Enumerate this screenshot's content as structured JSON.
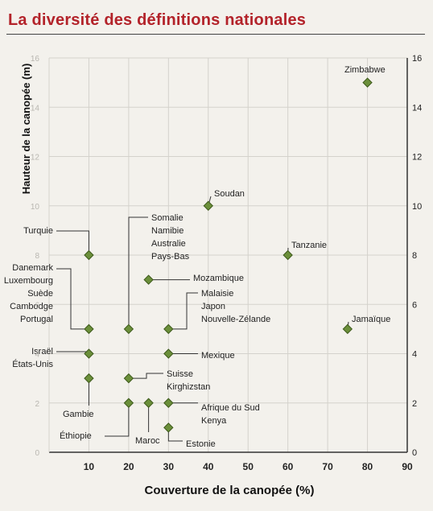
{
  "chart_data": {
    "type": "scatter",
    "title": "La diversité des définitions nationales",
    "xlabel": "Couverture de la canopée (%)",
    "ylabel": "Hauteur de la canopée (m)",
    "xlim": [
      0,
      90
    ],
    "ylim": [
      0,
      16
    ],
    "x_ticks": [
      10,
      20,
      30,
      40,
      50,
      60,
      70,
      80,
      90
    ],
    "y_ticks_left": [
      0,
      2,
      4,
      6,
      8,
      10,
      12,
      14,
      16
    ],
    "y_ticks_right": [
      0,
      2,
      4,
      6,
      8,
      10,
      12,
      14,
      16
    ],
    "grid": true,
    "marker_color": "#6b8f3a",
    "points": [
      {
        "x": 10,
        "y": 8,
        "labels": [
          "Turquie"
        ]
      },
      {
        "x": 10,
        "y": 5,
        "labels": [
          "Danemark",
          "Luxembourg",
          "Suède",
          "Cambodge",
          "Portugal"
        ]
      },
      {
        "x": 10,
        "y": 4,
        "labels": [
          "Israël",
          "États-Unis"
        ]
      },
      {
        "x": 10,
        "y": 3,
        "labels": [
          "Gambie"
        ]
      },
      {
        "x": 20,
        "y": 5,
        "labels": [
          "Somalie",
          "Namibie",
          "Australie",
          "Pays-Bas"
        ]
      },
      {
        "x": 20,
        "y": 3,
        "labels": [
          "Suisse",
          "Kirghizstan"
        ]
      },
      {
        "x": 20,
        "y": 2,
        "labels": [
          "Éthiopie"
        ]
      },
      {
        "x": 25,
        "y": 7,
        "labels": [
          "Mozambique"
        ]
      },
      {
        "x": 25,
        "y": 2,
        "labels": [
          "Maroc"
        ]
      },
      {
        "x": 30,
        "y": 5,
        "labels": [
          "Malaisie",
          "Japon",
          "Nouvelle-Zélande"
        ]
      },
      {
        "x": 30,
        "y": 4,
        "labels": [
          "Mexique"
        ]
      },
      {
        "x": 30,
        "y": 2,
        "labels": [
          "Afrique du Sud",
          "Kenya"
        ]
      },
      {
        "x": 30,
        "y": 1,
        "labels": [
          "Estonie"
        ]
      },
      {
        "x": 40,
        "y": 10,
        "labels": [
          "Soudan"
        ]
      },
      {
        "x": 60,
        "y": 8,
        "labels": [
          "Tanzanie"
        ]
      },
      {
        "x": 75,
        "y": 5,
        "labels": [
          "Jamaïque"
        ]
      },
      {
        "x": 80,
        "y": 15,
        "labels": [
          "Zimbabwe"
        ]
      }
    ]
  }
}
